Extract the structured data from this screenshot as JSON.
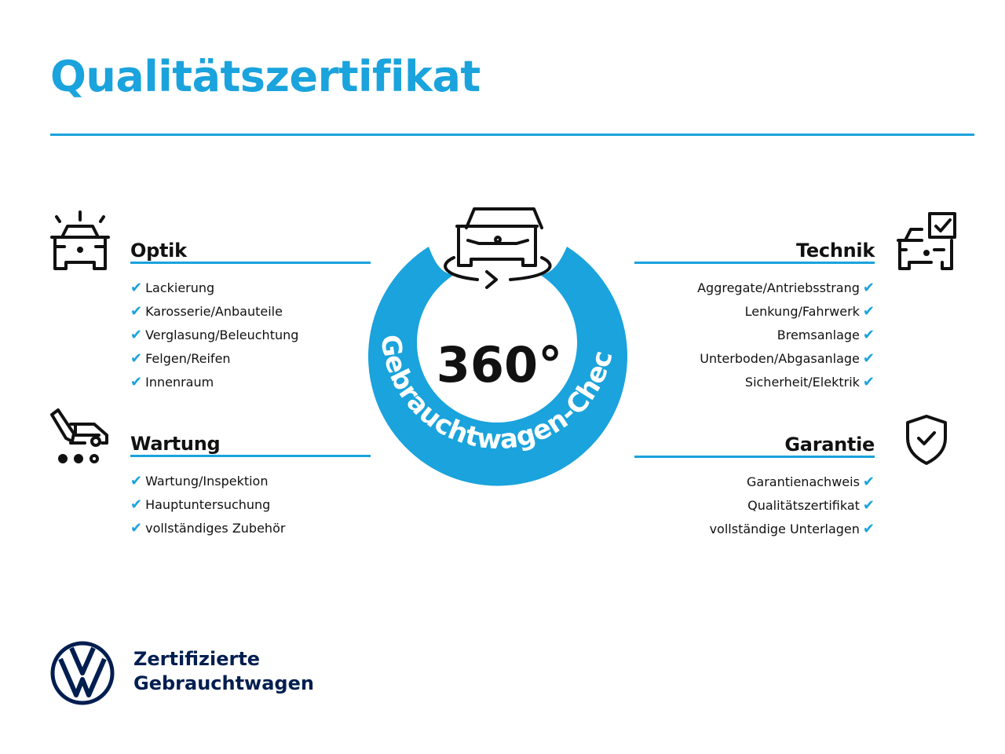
{
  "title": "Qualitätszertifikat",
  "badge": {
    "number": "360°",
    "ring_text": "Gebrauchtwagen-Check"
  },
  "sections": {
    "optik": {
      "heading": "Optik",
      "items": [
        "Lackierung",
        "Karosserie/Anbauteile",
        "Verglasung/Beleuchtung",
        "Felgen/Reifen",
        "Innenraum"
      ]
    },
    "wartung": {
      "heading": "Wartung",
      "items": [
        "Wartung/Inspektion",
        "Hauptuntersuchung",
        "vollständiges Zubehör"
      ]
    },
    "technik": {
      "heading": "Technik",
      "items": [
        "Aggregate/Antriebsstrang",
        "Lenkung/Fahrwerk",
        "Bremsanlage",
        "Unterboden/Abgasanlage",
        "Sicherheit/Elektrik"
      ]
    },
    "garantie": {
      "heading": "Garantie",
      "items": [
        "Garantienachweis",
        "Qualitätszertifikat",
        "vollständige Unterlagen"
      ]
    }
  },
  "check_glyph": "✔",
  "footer": {
    "line1": "Zertifizierte",
    "line2": "Gebrauchtwagen"
  },
  "colors": {
    "accent": "#1aa3dc",
    "brand": "#001e50"
  }
}
